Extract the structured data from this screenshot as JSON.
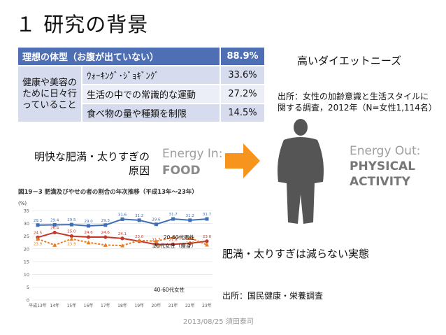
{
  "slide": {
    "title": "１ 研究の背景"
  },
  "survey": {
    "header": {
      "label": "理想の体型（お腹が出ていない）",
      "value": "88.9%"
    },
    "group_label": "健康や美容のために日々行っていること",
    "rows": [
      {
        "label": "ｳｫｰｷﾝｸﾞ･ｼﾞｮｷﾞﾝｸﾞ",
        "value": "33.6%"
      },
      {
        "label": "生活の中での常識的な運動",
        "value": "27.2%"
      },
      {
        "label": "食べ物の量や種類を制限",
        "value": "14.5%"
      }
    ]
  },
  "high_demand": "高いダイエットニーズ",
  "source_1": {
    "line1": "出所：女性の加齢意識と生活スタイルに",
    "line2": "関する調査，2012年（N=女性1,114名）"
  },
  "obesity_cause": {
    "line1": "明快な肥満・太りすぎの",
    "line2": "原因"
  },
  "energy_in": {
    "label": "Energy In:",
    "value": "FOOD"
  },
  "energy_out": {
    "label": "Energy Out:",
    "value1": "PHYSICAL",
    "value2": "ACTIVITY"
  },
  "colors": {
    "table_header": "#4f6fb5",
    "table_row": "#d6dcee",
    "arrow": "#f7941d",
    "silhouette": "#555555",
    "male_line": "#3e6fb6",
    "female_line": "#c0392b",
    "thin_line": "#e67e22"
  },
  "chart_data": {
    "type": "line",
    "title": "図19－3 肥満及びやせの者の割合の年次推移（平成13年～23年）",
    "ylabel": "(%)",
    "ylim": [
      0,
      35
    ],
    "yticks": [
      0,
      5,
      10,
      15,
      20,
      25,
      30,
      35
    ],
    "categories": [
      "平成13年",
      "14年",
      "15年",
      "16年",
      "17年",
      "18年",
      "19年",
      "20年",
      "21年",
      "22年",
      "23年"
    ],
    "series": [
      {
        "name": "20-60代男性",
        "values": [
          29.3,
          29.4,
          29.5,
          29.0,
          29.3,
          31.6,
          31.2,
          29.6,
          31.7,
          31.2,
          31.7
        ],
        "labels": [
          "29.3",
          "29.4",
          "29.5",
          "29.0",
          "29.3",
          "31.6",
          "31.2",
          "29.6",
          "31.7",
          "31.2",
          "31.7"
        ]
      },
      {
        "name": "40-60代女性",
        "values": [
          24.5,
          26.4,
          25.0,
          24.6,
          24.6,
          24.1,
          23.0,
          21.7,
          21.8,
          22.2,
          23.0
        ],
        "labels": [
          "24.5",
          "26.4",
          "25.0",
          "24.6",
          "24.6",
          "24.1",
          "23.0",
          "21.7",
          "21.8",
          "22.2",
          "23.0"
        ]
      },
      {
        "name": "20代女性（痩身）",
        "values": [
          23.9,
          21.5,
          23.9,
          22.5,
          21.5,
          21.3,
          23.3,
          23.0,
          24.5,
          24.3,
          21.6
        ],
        "labels": [
          "23.9",
          "",
          "23.9",
          "",
          "",
          "",
          "",
          "23.0",
          "",
          "24.3",
          ""
        ]
      }
    ]
  },
  "not_decreasing": "肥満・太りすぎは減らない実態",
  "source_2": "出所：国民健康・栄養調査",
  "footer": "2013/08/25 須田泰司"
}
